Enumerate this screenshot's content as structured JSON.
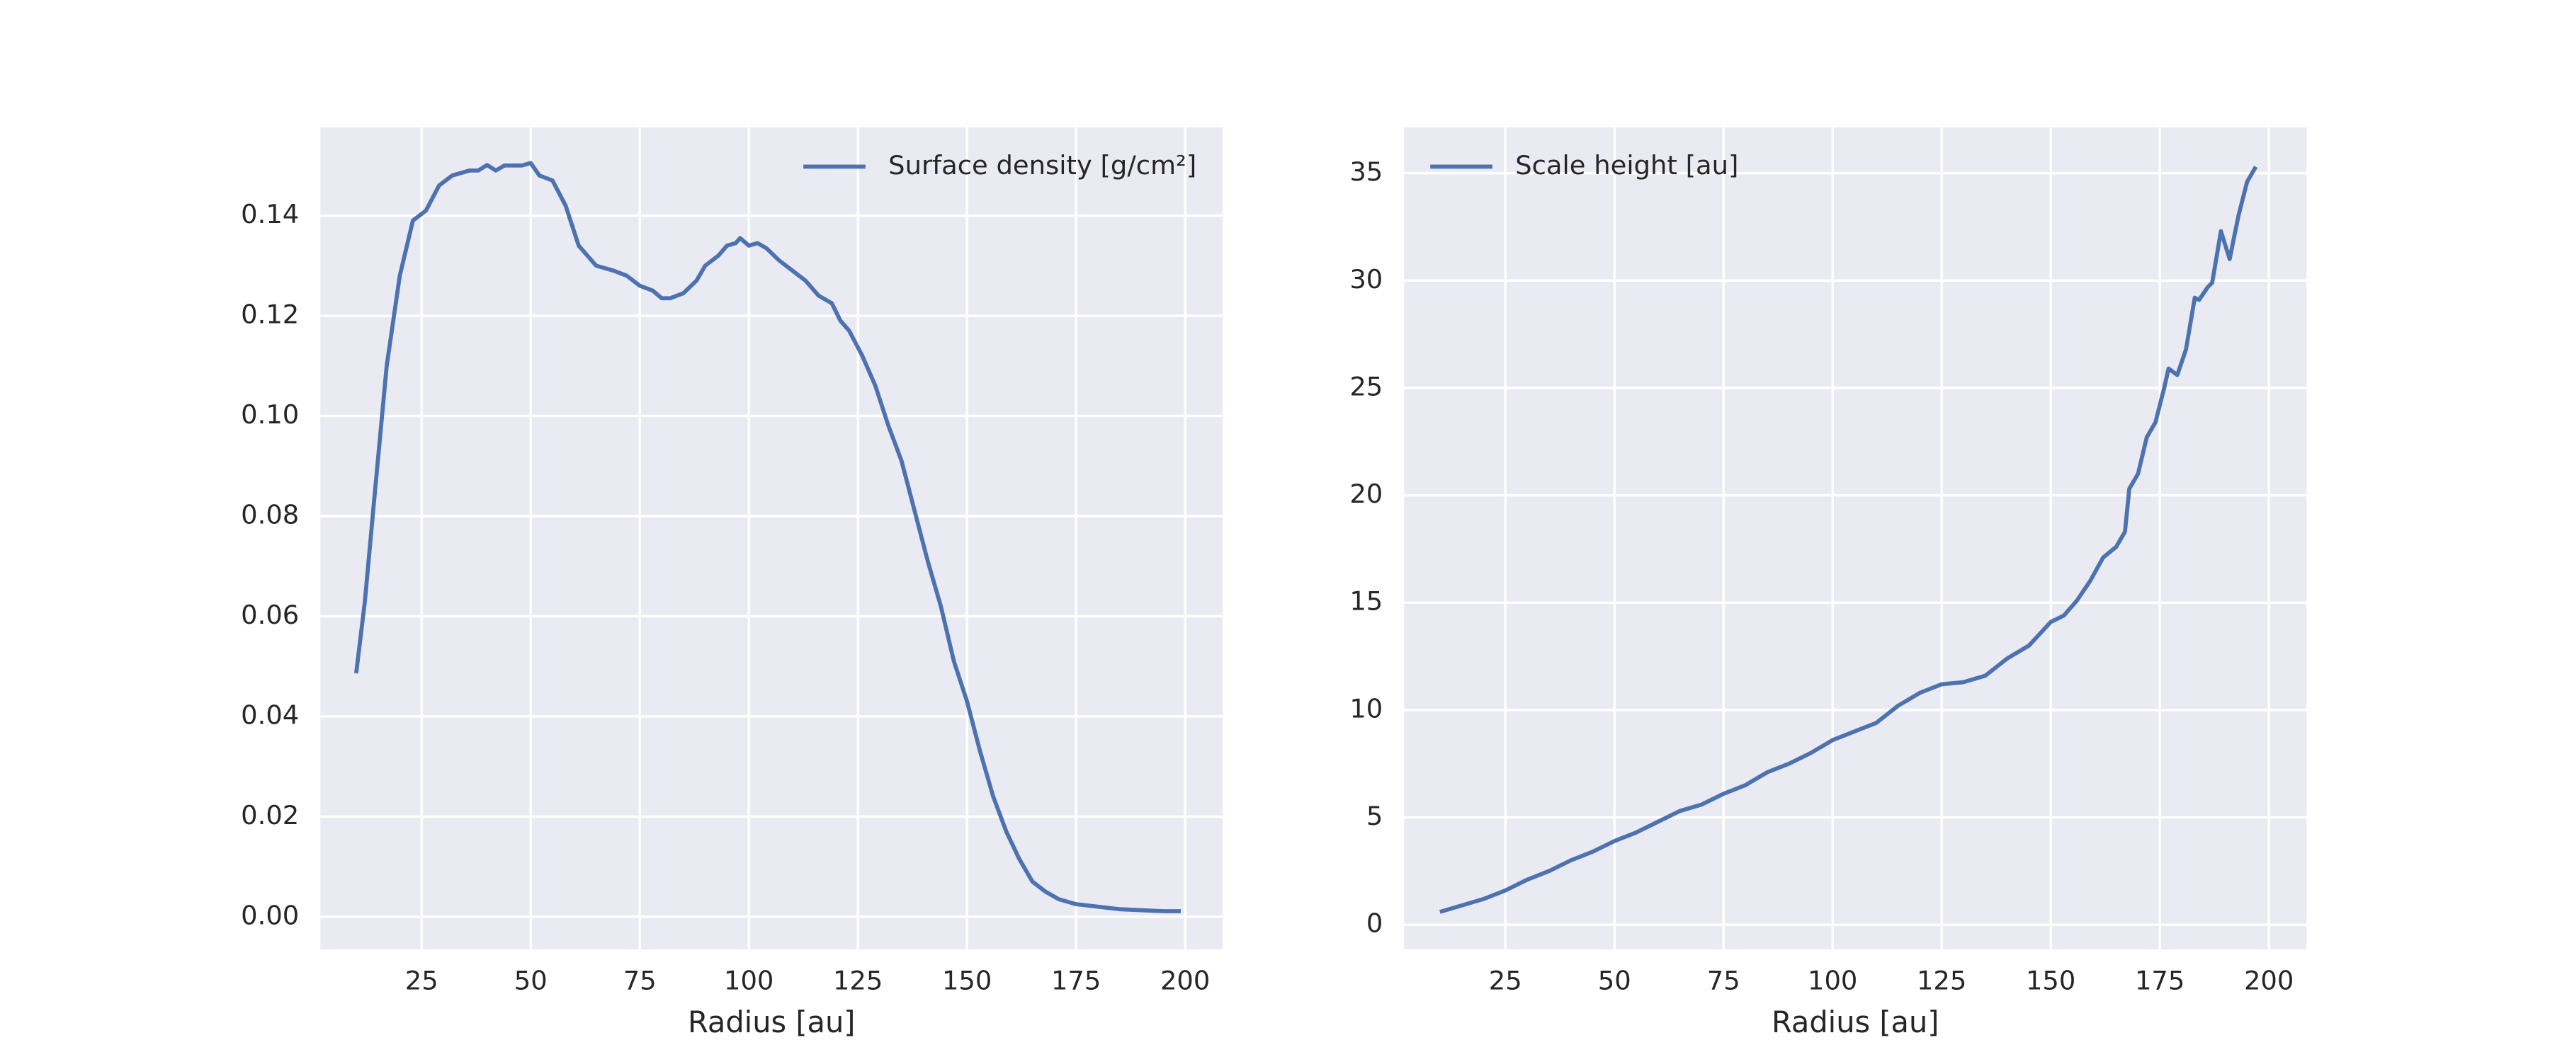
{
  "chart_data": [
    {
      "type": "line",
      "xlabel": "Radius [au]",
      "x": [
        10,
        12,
        14,
        17,
        20,
        23,
        26,
        29,
        32,
        36,
        38,
        40,
        42,
        44,
        48,
        50,
        52,
        55,
        58,
        61,
        65,
        69,
        72,
        75,
        78,
        80,
        82,
        85,
        88,
        90,
        93,
        95,
        97,
        98,
        100,
        102,
        104,
        107,
        110,
        113,
        116,
        119,
        121,
        123,
        126,
        129,
        132,
        135,
        138,
        141,
        144,
        147,
        150,
        153,
        156,
        159,
        162,
        165,
        168,
        171,
        175,
        180,
        185,
        190,
        195,
        199
      ],
      "series": [
        {
          "name": "Surface density [g/cm²]",
          "color": "#4c72b0",
          "values": [
            0.0486,
            0.063,
            0.082,
            0.11,
            0.128,
            0.139,
            0.141,
            0.146,
            0.148,
            0.149,
            0.149,
            0.1501,
            0.149,
            0.15,
            0.15,
            0.1505,
            0.148,
            0.147,
            0.142,
            0.134,
            0.13,
            0.129,
            0.128,
            0.126,
            0.125,
            0.1235,
            0.1235,
            0.1245,
            0.127,
            0.13,
            0.132,
            0.134,
            0.1345,
            0.1355,
            0.134,
            0.1345,
            0.1335,
            0.131,
            0.129,
            0.127,
            0.124,
            0.1225,
            0.119,
            0.117,
            0.112,
            0.106,
            0.098,
            0.091,
            0.081,
            0.071,
            0.062,
            0.051,
            0.043,
            0.033,
            0.024,
            0.017,
            0.0115,
            0.007,
            0.005,
            0.0035,
            0.0025,
            0.002,
            0.0015,
            0.0013,
            0.0011,
            0.0011
          ]
        }
      ],
      "xlim": [
        1.8,
        208.6
      ],
      "xticks": [
        25,
        50,
        75,
        100,
        125,
        150,
        175,
        200
      ],
      "ylim": [
        -0.0065,
        0.1576
      ],
      "yticks": [
        {
          "value": 0,
          "label": "0.00"
        },
        0.02,
        0.04,
        0.06,
        0.08,
        {
          "value": 0.1,
          "label": "0.10"
        },
        0.12,
        0.14
      ],
      "grid": true,
      "legend": "upper right"
    },
    {
      "type": "line",
      "xlabel": "Radius [au]",
      "x": [
        10,
        20,
        25,
        30,
        35,
        40,
        45,
        50,
        55,
        60,
        65,
        70,
        75,
        80,
        85,
        90,
        95,
        100,
        105,
        110,
        115,
        120,
        125,
        130,
        135,
        140,
        145,
        150,
        153,
        156,
        159,
        162,
        165,
        167,
        168,
        170,
        172,
        174,
        176,
        177,
        179,
        181,
        183,
        184,
        186,
        187,
        189,
        191,
        193,
        195,
        197
      ],
      "series": [
        {
          "name": "Scale height [au]",
          "color": "#4c72b0",
          "values": [
            0.6,
            1.2,
            1.6,
            2.1,
            2.5,
            3.0,
            3.4,
            3.9,
            4.3,
            4.8,
            5.3,
            5.6,
            6.1,
            6.5,
            7.1,
            7.5,
            8.0,
            8.6,
            9.0,
            9.4,
            10.2,
            10.8,
            11.2,
            11.3,
            11.6,
            12.4,
            13.0,
            14.1,
            14.4,
            15.1,
            16.0,
            17.1,
            17.6,
            18.3,
            20.3,
            21.0,
            22.7,
            23.4,
            25.0,
            25.9,
            25.6,
            26.8,
            29.2,
            29.1,
            29.7,
            29.9,
            32.3,
            31.0,
            33.0,
            34.6,
            35.3
          ]
        }
      ],
      "xlim": [
        1.8,
        208.6
      ],
      "xticks": [
        25,
        50,
        75,
        100,
        125,
        150,
        175,
        200
      ],
      "ylim": [
        -1.14,
        37.13
      ],
      "yticks": [
        0,
        5,
        10,
        15,
        20,
        25,
        30,
        35
      ],
      "grid": true,
      "legend": "upper left"
    }
  ]
}
